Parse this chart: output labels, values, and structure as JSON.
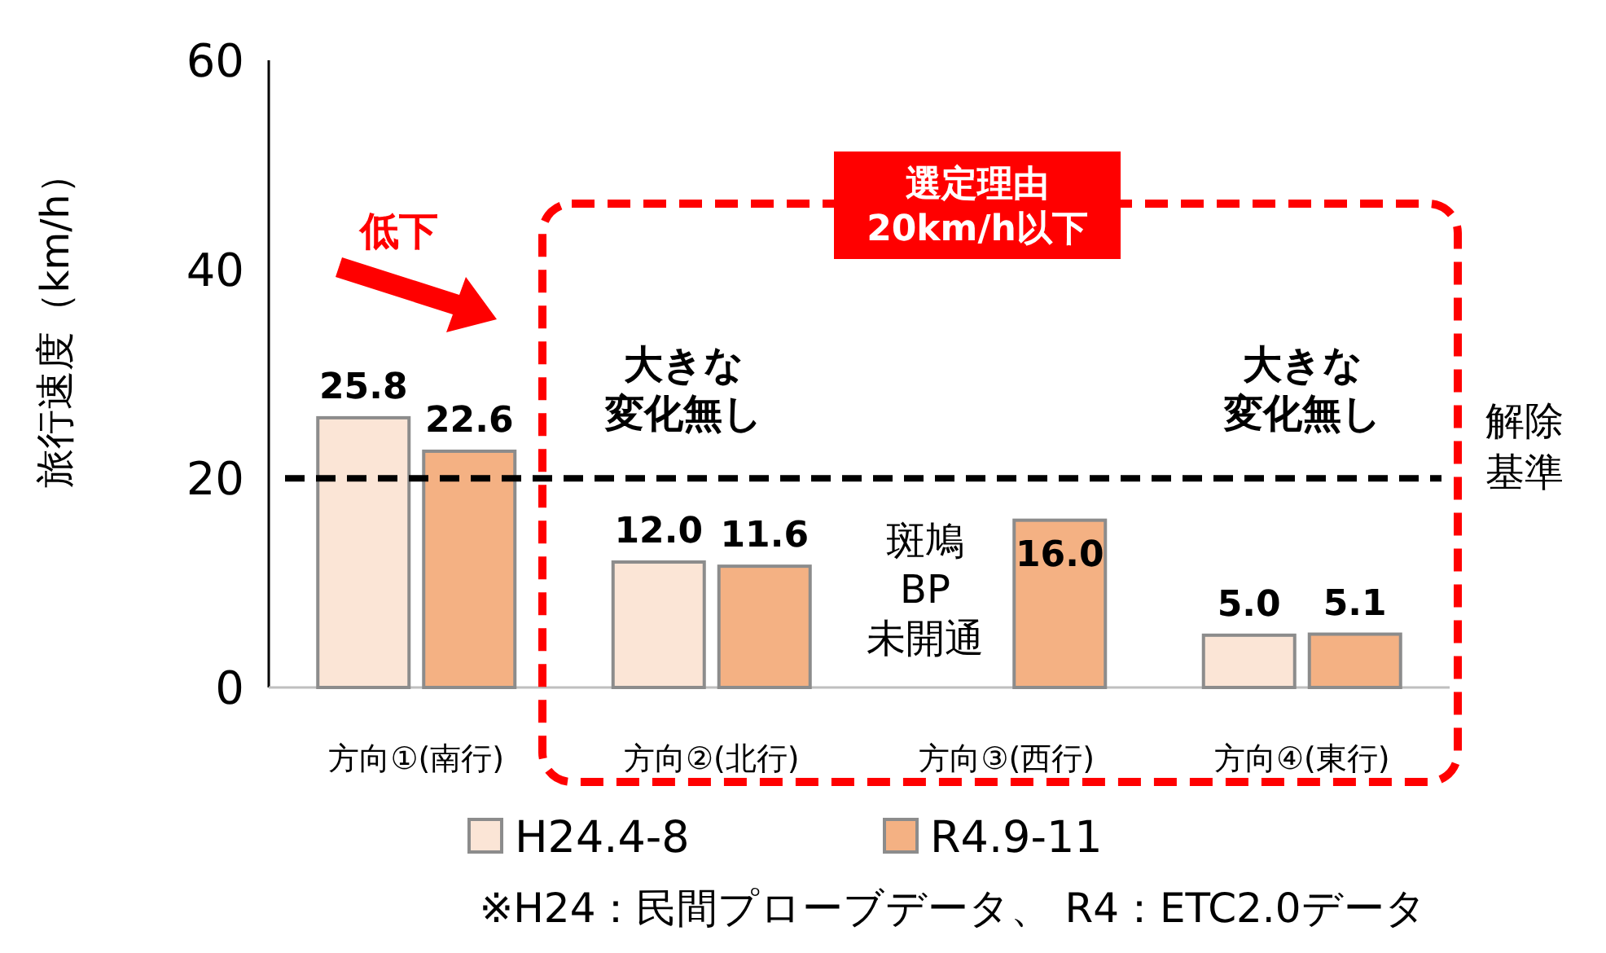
{
  "chart_data": {
    "type": "bar",
    "ylabel": "旅行速度（km/h）",
    "categories": [
      "方向①(南行)",
      "方向②(北行)",
      "方向③(西行)",
      "方向④(東行)"
    ],
    "series": [
      {
        "name": "H24.4-8",
        "color": "#fbe5d6",
        "values": [
          25.8,
          12.0,
          null,
          5.0
        ],
        "value_labels": [
          "25.8",
          "12.0",
          null,
          "5.0"
        ]
      },
      {
        "name": "R4.9-11",
        "color": "#f4b183",
        "values": [
          22.6,
          11.6,
          16.0,
          5.1
        ],
        "value_labels": [
          "22.6",
          "11.6",
          "16.0",
          "5.1"
        ]
      }
    ],
    "ylim": [
      0,
      60
    ],
    "yticks": [
      0,
      20,
      40,
      60
    ],
    "grid": false,
    "legend": "bottom",
    "ref_lines": [
      {
        "axis": "y",
        "value": 20,
        "label": "解除基準",
        "color": "#000000",
        "line_style": "dashed"
      }
    ],
    "annotations": [
      "低下",
      "選定理由\n20km/h以下",
      "大きな変化無し",
      "大きな変化無し",
      "斑鳩\nBP\n未開通",
      "※H24：民間プローブデータ、 R4：ETC2.0データ"
    ]
  }
}
